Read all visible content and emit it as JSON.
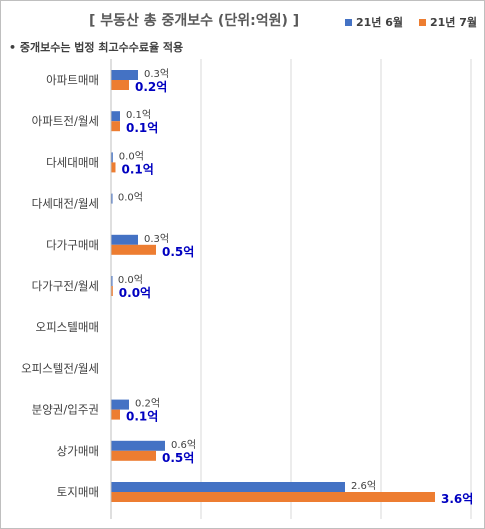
{
  "chart_data": {
    "type": "bar",
    "orientation": "horizontal",
    "title": "[ 부동산 총 중개보수 (단위:억원) ]",
    "note": "중개보수는 법정 최고수수료율 적용",
    "categories": [
      "아파트매매",
      "아파트전/월세",
      "다세대매매",
      "다세대전/월세",
      "다가구매매",
      "다가구전/월세",
      "오피스텔매매",
      "오피스텔전/월세",
      "분양권/입주권",
      "상가매매",
      "토지매매"
    ],
    "series": [
      {
        "name": "21년 6월",
        "color": "#4472c4",
        "values": [
          0.3,
          0.1,
          0.02,
          0.01,
          0.3,
          0.01,
          0,
          0,
          0.2,
          0.6,
          2.6
        ],
        "labels": [
          "0.3억",
          "0.1억",
          "0.0억",
          "0.0억",
          "0.3억",
          "0.0억",
          "",
          "",
          "0.2억",
          "0.6억",
          "2.6억"
        ]
      },
      {
        "name": "21년 7월",
        "color": "#ed7d31",
        "values": [
          0.2,
          0.1,
          0.05,
          0,
          0.5,
          0.02,
          0,
          0,
          0.1,
          0.5,
          3.6
        ],
        "labels": [
          "0.2억",
          "0.1억",
          "0.1억",
          "",
          "0.5억",
          "0.0억",
          "",
          "",
          "0.1억",
          "0.5억",
          "3.6억"
        ]
      }
    ],
    "xlim": [
      0,
      4.0
    ],
    "grid": true,
    "legend_position": "top-right"
  }
}
